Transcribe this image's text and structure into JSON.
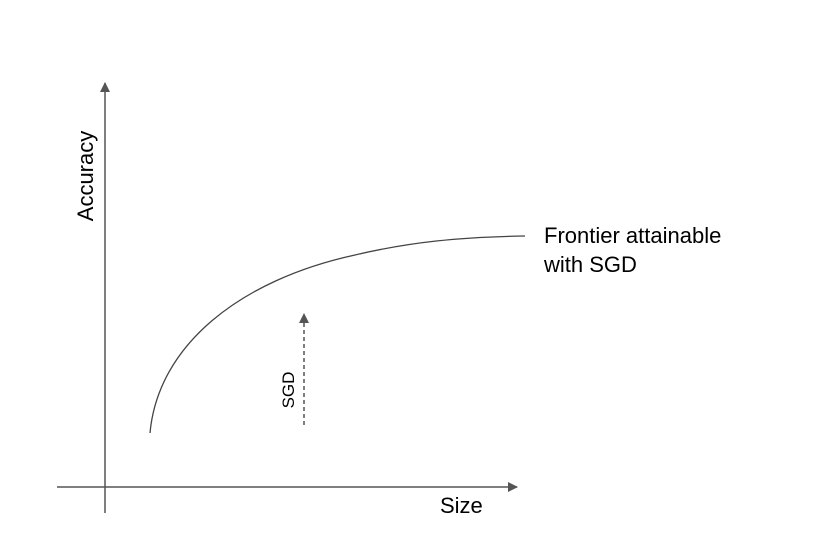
{
  "diagram": {
    "y_axis_label": "Accuracy",
    "x_axis_label": "Size",
    "curve_label_line1": "Frontier attainable",
    "curve_label_line2": "with SGD",
    "arrow_label": "SGD",
    "colors": {
      "axis": "#555555",
      "curve": "#444444",
      "dashed_arrow": "#555555",
      "text": "#000000",
      "background": "#ffffff"
    }
  }
}
